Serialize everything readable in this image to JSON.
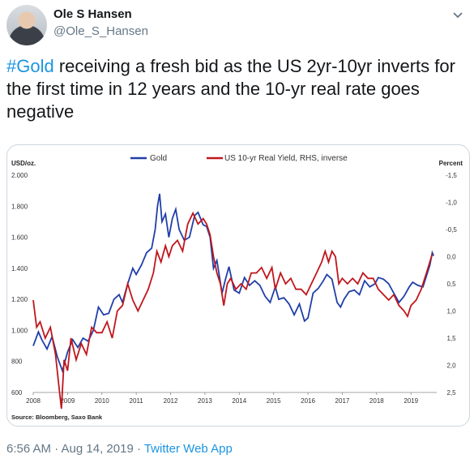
{
  "tweet": {
    "author_name": "Ole S Hansen",
    "author_handle": "@Ole_S_Hansen",
    "hashtag": "#Gold",
    "text_rest": " receiving a fresh bid as the US 2yr-10yr inverts for the first time in 12 years and the 10-yr real rate goes negative",
    "time": "6:56 AM · Aug 14, 2019 · ",
    "app": "Twitter Web App"
  },
  "colors": {
    "gold": "#1f3fa8",
    "real_yield": "#c0161c",
    "link": "#1b95e0"
  },
  "icons": {
    "menu": "chevron-down-icon"
  },
  "chart_data": {
    "type": "line",
    "source": "Source: Bloomberg, Saxo Bank",
    "left_axis_title": "USD/oz.",
    "right_axis_title": "Percent",
    "left_ylim": [
      600,
      2000
    ],
    "right_ylim": [
      2.5,
      -1.5
    ],
    "left_ticks": [
      "2.000",
      "1.800",
      "1.600",
      "1.400",
      "1.200",
      "1.000",
      "800",
      "600"
    ],
    "right_ticks": [
      "-1,5",
      "-1,0",
      "-0,5",
      "0,0",
      "0,5",
      "1,0",
      "1,5",
      "2,0",
      "2,5"
    ],
    "x_ticks": [
      "2008",
      "2009",
      "2010",
      "2011",
      "2012",
      "2013",
      "2014",
      "2015",
      "2016",
      "2017",
      "2018",
      "2019"
    ],
    "xlim": [
      2008.0,
      2019.75
    ],
    "series": [
      {
        "name": "Gold",
        "axis": "left",
        "points": [
          [
            2008.0,
            900
          ],
          [
            2008.15,
            990
          ],
          [
            2008.25,
            940
          ],
          [
            2008.4,
            880
          ],
          [
            2008.55,
            960
          ],
          [
            2008.7,
            830
          ],
          [
            2008.85,
            740
          ],
          [
            2009.0,
            860
          ],
          [
            2009.15,
            940
          ],
          [
            2009.3,
            890
          ],
          [
            2009.45,
            950
          ],
          [
            2009.6,
            930
          ],
          [
            2009.75,
            1000
          ],
          [
            2009.9,
            1150
          ],
          [
            2010.05,
            1100
          ],
          [
            2010.2,
            1110
          ],
          [
            2010.35,
            1200
          ],
          [
            2010.5,
            1230
          ],
          [
            2010.6,
            1180
          ],
          [
            2010.75,
            1300
          ],
          [
            2010.9,
            1400
          ],
          [
            2011.0,
            1360
          ],
          [
            2011.15,
            1420
          ],
          [
            2011.3,
            1500
          ],
          [
            2011.45,
            1530
          ],
          [
            2011.55,
            1650
          ],
          [
            2011.62,
            1800
          ],
          [
            2011.68,
            1880
          ],
          [
            2011.75,
            1700
          ],
          [
            2011.85,
            1750
          ],
          [
            2011.95,
            1600
          ],
          [
            2012.05,
            1720
          ],
          [
            2012.15,
            1780
          ],
          [
            2012.25,
            1650
          ],
          [
            2012.4,
            1580
          ],
          [
            2012.55,
            1600
          ],
          [
            2012.7,
            1740
          ],
          [
            2012.8,
            1760
          ],
          [
            2012.95,
            1680
          ],
          [
            2013.05,
            1670
          ],
          [
            2013.15,
            1600
          ],
          [
            2013.25,
            1400
          ],
          [
            2013.35,
            1450
          ],
          [
            2013.5,
            1240
          ],
          [
            2013.6,
            1330
          ],
          [
            2013.7,
            1410
          ],
          [
            2013.85,
            1260
          ],
          [
            2014.0,
            1240
          ],
          [
            2014.15,
            1340
          ],
          [
            2014.3,
            1290
          ],
          [
            2014.45,
            1320
          ],
          [
            2014.6,
            1290
          ],
          [
            2014.75,
            1220
          ],
          [
            2014.9,
            1180
          ],
          [
            2015.05,
            1280
          ],
          [
            2015.15,
            1200
          ],
          [
            2015.3,
            1210
          ],
          [
            2015.45,
            1170
          ],
          [
            2015.6,
            1100
          ],
          [
            2015.75,
            1170
          ],
          [
            2015.9,
            1060
          ],
          [
            2016.0,
            1080
          ],
          [
            2016.15,
            1240
          ],
          [
            2016.3,
            1270
          ],
          [
            2016.45,
            1320
          ],
          [
            2016.55,
            1360
          ],
          [
            2016.7,
            1330
          ],
          [
            2016.85,
            1180
          ],
          [
            2016.95,
            1150
          ],
          [
            2017.05,
            1200
          ],
          [
            2017.2,
            1250
          ],
          [
            2017.35,
            1260
          ],
          [
            2017.5,
            1230
          ],
          [
            2017.65,
            1320
          ],
          [
            2017.8,
            1280
          ],
          [
            2017.95,
            1300
          ],
          [
            2018.05,
            1340
          ],
          [
            2018.2,
            1330
          ],
          [
            2018.35,
            1300
          ],
          [
            2018.5,
            1240
          ],
          [
            2018.65,
            1180
          ],
          [
            2018.8,
            1220
          ],
          [
            2018.95,
            1280
          ],
          [
            2019.05,
            1310
          ],
          [
            2019.2,
            1290
          ],
          [
            2019.35,
            1280
          ],
          [
            2019.45,
            1350
          ],
          [
            2019.55,
            1420
          ],
          [
            2019.62,
            1500
          ],
          [
            2019.66,
            1480
          ]
        ]
      },
      {
        "name": "US 10-yr Real Yield, RHS, inverse",
        "axis": "right",
        "points": [
          [
            2008.0,
            0.8
          ],
          [
            2008.1,
            1.3
          ],
          [
            2008.2,
            1.2
          ],
          [
            2008.35,
            1.5
          ],
          [
            2008.5,
            1.3
          ],
          [
            2008.65,
            1.8
          ],
          [
            2008.75,
            2.4
          ],
          [
            2008.82,
            2.8
          ],
          [
            2008.9,
            1.9
          ],
          [
            2009.0,
            2.1
          ],
          [
            2009.1,
            1.5
          ],
          [
            2009.25,
            1.9
          ],
          [
            2009.4,
            1.6
          ],
          [
            2009.55,
            1.8
          ],
          [
            2009.7,
            1.3
          ],
          [
            2009.85,
            1.4
          ],
          [
            2010.0,
            1.4
          ],
          [
            2010.15,
            1.2
          ],
          [
            2010.3,
            1.5
          ],
          [
            2010.45,
            1.0
          ],
          [
            2010.6,
            0.9
          ],
          [
            2010.75,
            0.5
          ],
          [
            2010.9,
            0.8
          ],
          [
            2011.05,
            1.0
          ],
          [
            2011.2,
            0.8
          ],
          [
            2011.35,
            0.6
          ],
          [
            2011.5,
            0.3
          ],
          [
            2011.6,
            -0.1
          ],
          [
            2011.72,
            0.1
          ],
          [
            2011.85,
            -0.2
          ],
          [
            2011.95,
            0.0
          ],
          [
            2012.05,
            -0.2
          ],
          [
            2012.2,
            -0.3
          ],
          [
            2012.35,
            -0.1
          ],
          [
            2012.5,
            -0.6
          ],
          [
            2012.65,
            -0.8
          ],
          [
            2012.8,
            -0.6
          ],
          [
            2012.95,
            -0.7
          ],
          [
            2013.05,
            -0.6
          ],
          [
            2013.15,
            -0.4
          ],
          [
            2013.25,
            0.0
          ],
          [
            2013.35,
            0.3
          ],
          [
            2013.45,
            0.5
          ],
          [
            2013.55,
            0.9
          ],
          [
            2013.65,
            0.5
          ],
          [
            2013.75,
            0.4
          ],
          [
            2013.9,
            0.6
          ],
          [
            2014.05,
            0.5
          ],
          [
            2014.2,
            0.6
          ],
          [
            2014.35,
            0.3
          ],
          [
            2014.5,
            0.3
          ],
          [
            2014.65,
            0.2
          ],
          [
            2014.8,
            0.4
          ],
          [
            2014.95,
            0.2
          ],
          [
            2015.05,
            0.6
          ],
          [
            2015.2,
            0.3
          ],
          [
            2015.35,
            0.5
          ],
          [
            2015.5,
            0.4
          ],
          [
            2015.65,
            0.6
          ],
          [
            2015.8,
            0.6
          ],
          [
            2015.95,
            0.7
          ],
          [
            2016.1,
            0.5
          ],
          [
            2016.25,
            0.3
          ],
          [
            2016.4,
            0.1
          ],
          [
            2016.5,
            -0.1
          ],
          [
            2016.6,
            0.1
          ],
          [
            2016.7,
            -0.1
          ],
          [
            2016.8,
            0.0
          ],
          [
            2016.9,
            0.5
          ],
          [
            2017.0,
            0.4
          ],
          [
            2017.15,
            0.5
          ],
          [
            2017.3,
            0.4
          ],
          [
            2017.45,
            0.5
          ],
          [
            2017.6,
            0.3
          ],
          [
            2017.75,
            0.4
          ],
          [
            2017.9,
            0.4
          ],
          [
            2018.05,
            0.6
          ],
          [
            2018.2,
            0.7
          ],
          [
            2018.35,
            0.8
          ],
          [
            2018.5,
            0.7
          ],
          [
            2018.65,
            0.9
          ],
          [
            2018.8,
            1.0
          ],
          [
            2018.9,
            1.1
          ],
          [
            2019.0,
            0.9
          ],
          [
            2019.15,
            0.8
          ],
          [
            2019.3,
            0.6
          ],
          [
            2019.45,
            0.3
          ],
          [
            2019.55,
            0.1
          ],
          [
            2019.62,
            -0.05
          ]
        ]
      }
    ]
  }
}
